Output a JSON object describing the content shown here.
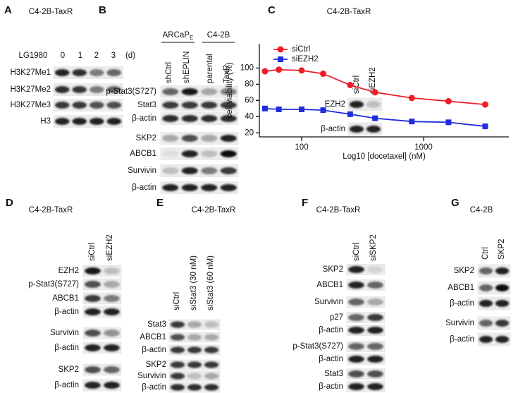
{
  "figure": {
    "panels": [
      {
        "letter": "A",
        "title": "C4-2B-TaxR",
        "treatment": "LG1980",
        "lanes": [
          "0",
          "1",
          "2",
          "3"
        ],
        "unit": "(d)",
        "rows": [
          "H3K27Me1",
          "H3K27Me2",
          "H3K27Me3",
          "H3"
        ]
      },
      {
        "letter": "B",
        "groups": [
          {
            "label": "ARCaP",
            "subscript": "E"
          },
          {
            "label": "C4-2B"
          }
        ],
        "lanes": [
          "shCtrl",
          "shEPLIN",
          "parental",
          "TaxR"
        ],
        "rows": [
          "p-Stat3(S727)",
          "Stat3",
          "β-actin",
          "SKP2",
          "ABCB1",
          "Survivin",
          "β-actin"
        ]
      },
      {
        "letter": "C",
        "title": "C4-2B-TaxR",
        "lanes": [
          "siCtrl",
          "siEZH2"
        ],
        "rows": [
          "EZH2",
          "β-actin"
        ]
      },
      {
        "letter": "D",
        "title": "C4-2B-TaxR",
        "lanes": [
          "siCtrl",
          "siEZH2"
        ],
        "rows": [
          "EZH2",
          "p-Stat3(S727)",
          "ABCB1",
          "β-actin",
          "Survivin",
          "β-actin",
          "SKP2",
          "β-actin"
        ]
      },
      {
        "letter": "E",
        "title": "C4-2B-TaxR",
        "lanes": [
          "siCtrl",
          "siStat3 (30 nM)",
          "siStat3 (60 nM)"
        ],
        "rows": [
          "Stat3",
          "ABCB1",
          "β-actin",
          "SKP2",
          "Survivin",
          "β-actin"
        ]
      },
      {
        "letter": "F",
        "title": "C4-2B-TaxR",
        "lanes": [
          "siCtrl",
          "siSKP2"
        ],
        "rows": [
          "SKP2",
          "ABCB1",
          "Survivin",
          "p27",
          "β-actin",
          "p-Stat3(S727)",
          "β-actin",
          "Stat3",
          "β-actin"
        ]
      },
      {
        "letter": "G",
        "title": "C4-2B",
        "lanes": [
          "Ctrl",
          "SKP2"
        ],
        "rows": [
          "SKP2",
          "ABCB1",
          "β-actin",
          "Survivin",
          "β-actin"
        ]
      }
    ]
  },
  "chart_data": {
    "type": "line",
    "x_label": "Log10 [docetaxel] (nM)",
    "y_label": "cell viability (%)",
    "x": [
      50,
      65,
      100,
      150,
      250,
      400,
      800,
      1600,
      3200
    ],
    "xlim": [
      45,
      5000
    ],
    "xticks": [
      100,
      1000
    ],
    "x_log": true,
    "ylim": [
      15,
      130
    ],
    "yticks": [
      20,
      40,
      60,
      80,
      100
    ],
    "legend": "upper left",
    "series": [
      {
        "name": "siCtrl",
        "color": "#ee1c25",
        "marker": "circle",
        "values": [
          96,
          98,
          97,
          93,
          79,
          70,
          63,
          59,
          55
        ]
      },
      {
        "name": "siEZH2",
        "color": "#1f2de0",
        "marker": "square",
        "values": [
          50,
          49,
          49,
          48,
          43,
          38,
          34,
          33,
          28
        ]
      }
    ]
  }
}
